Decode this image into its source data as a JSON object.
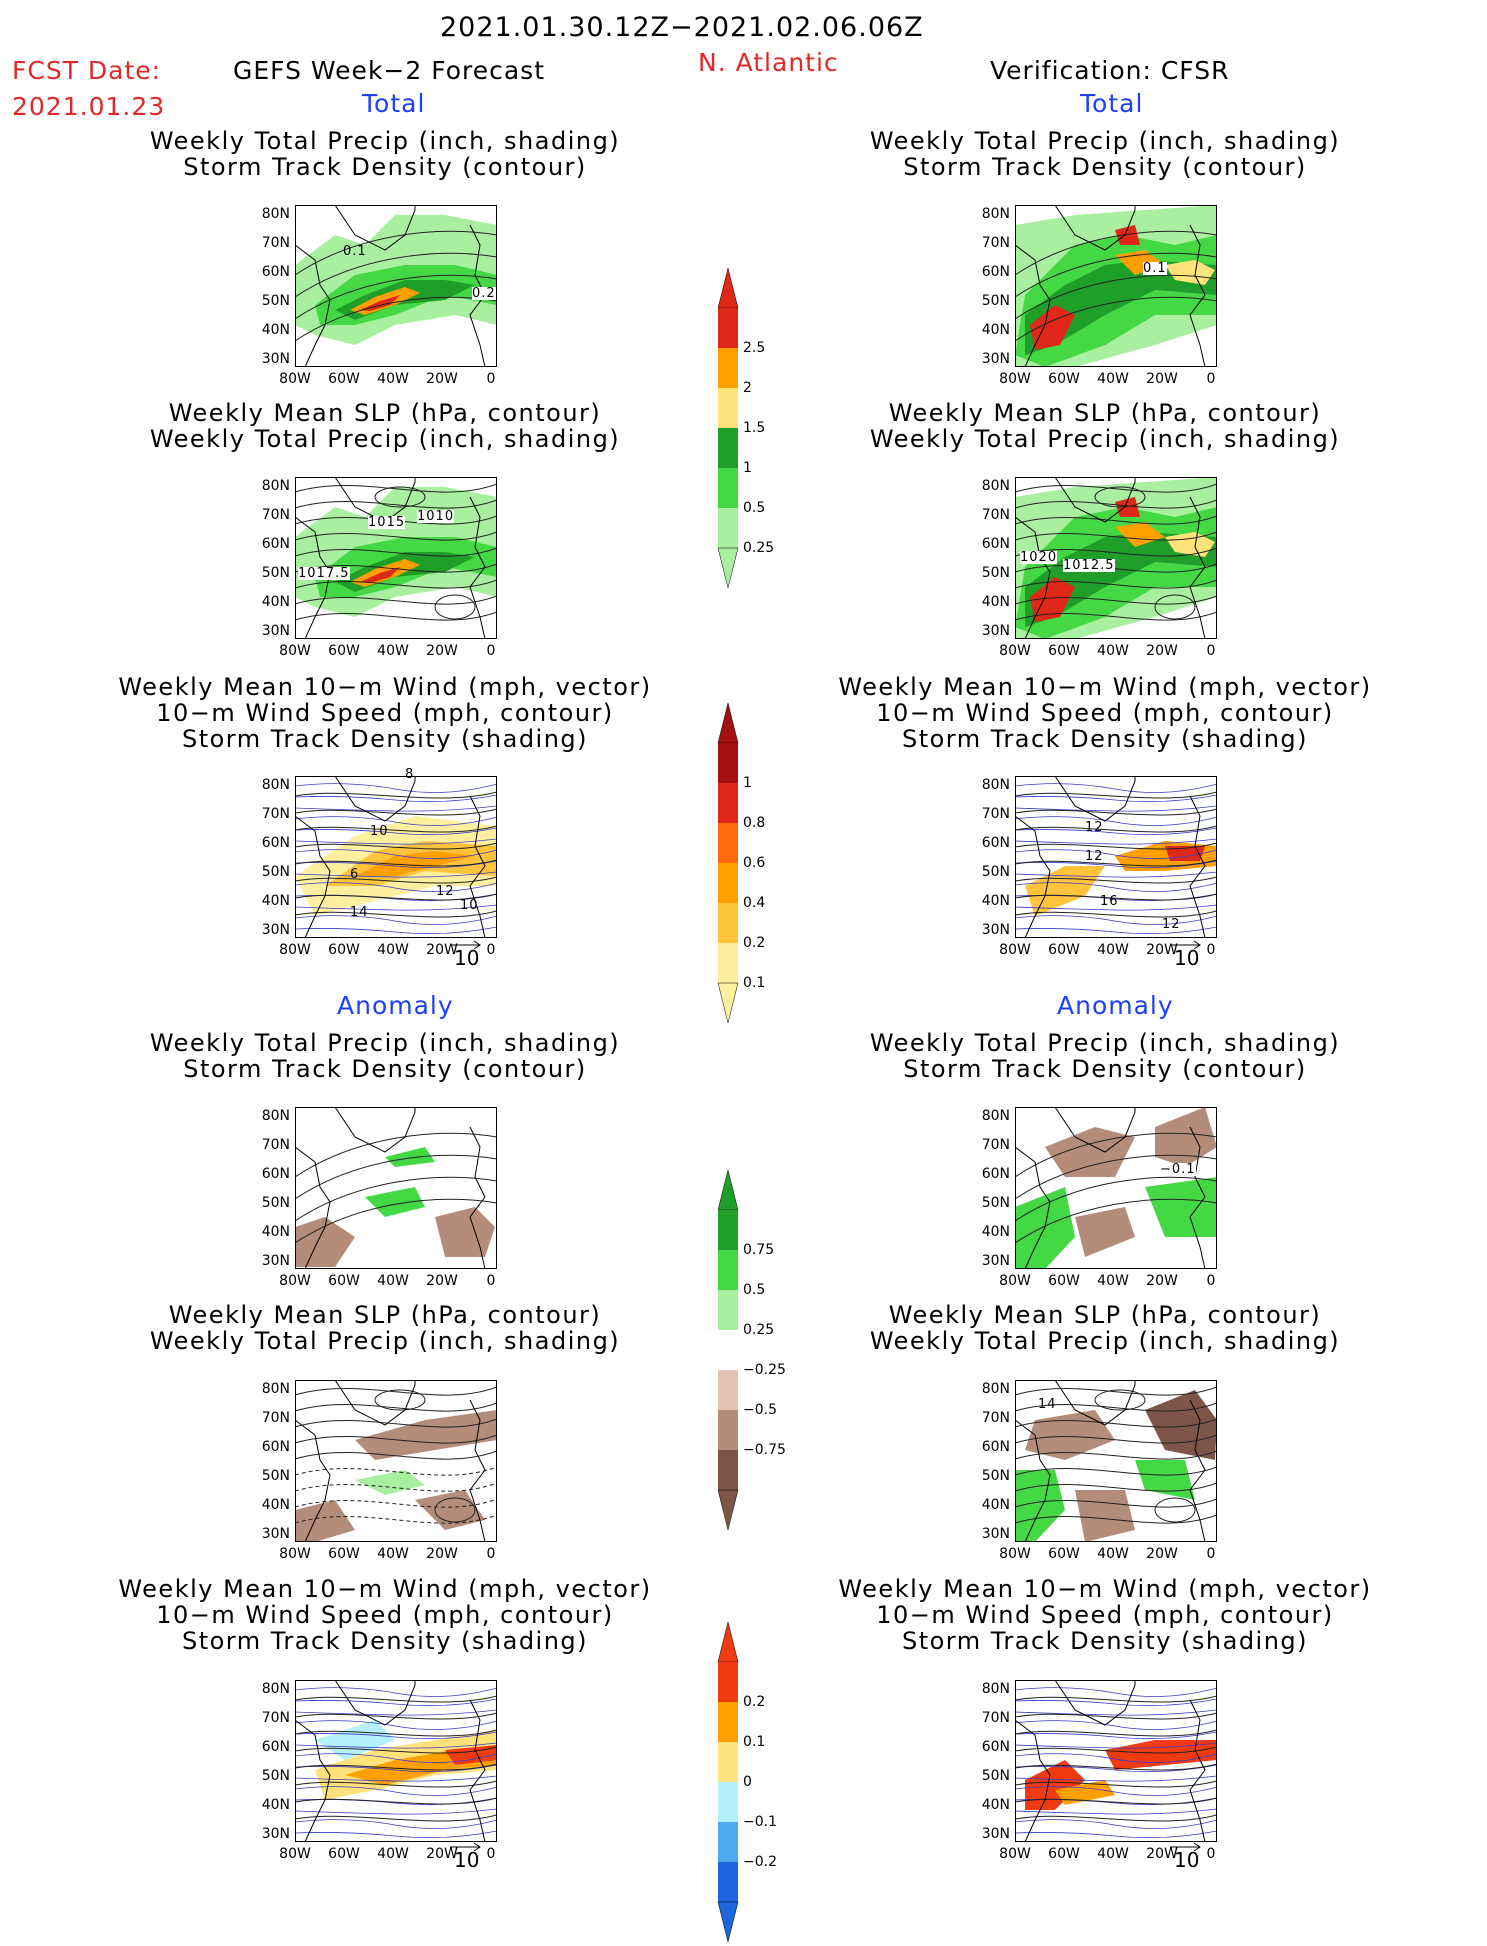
{
  "header": {
    "period": "2021.01.30.12Z−2021.02.06.06Z",
    "fcst_label": "FCST Date:",
    "fcst_date": "2021.01.23",
    "left_title": "GEFS Week−2 Forecast",
    "region": "N. Atlantic",
    "right_title": "Verification: CFSR",
    "total_label": "Total",
    "anomaly_label": "Anomaly"
  },
  "titles": {
    "p1": [
      "Weekly Total Precip (inch, shading)",
      "Storm Track Density (contour)"
    ],
    "p2": [
      "Weekly Mean SLP (hPa, contour)",
      "Weekly Total Precip (inch, shading)"
    ],
    "p3": [
      "Weekly Mean 10−m Wind (mph, vector)",
      "10−m Wind Speed (mph, contour)",
      "Storm Track Density (shading)"
    ]
  },
  "axes": {
    "lat": [
      "80N",
      "70N",
      "60N",
      "50N",
      "40N",
      "30N"
    ],
    "lon": [
      "80W",
      "60W",
      "40W",
      "20W",
      "0"
    ]
  },
  "vector_ref": "10",
  "contour_labels": {
    "gefs_total_track": [
      "0.1",
      "0.2"
    ],
    "cfsr_total_track": [
      "0.1"
    ],
    "gefs_total_slp": [
      "1015",
      "1010",
      "1017.5"
    ],
    "cfsr_total_slp": [
      "1020",
      "1012.5"
    ],
    "gefs_total_wind": [
      "8",
      "10",
      "6",
      "12",
      "14",
      "10"
    ],
    "cfsr_total_wind": [
      "12",
      "12",
      "16",
      "12"
    ],
    "cfsr_anom_track": [
      "−0.1"
    ],
    "cfsr_anom_slp": [
      "14"
    ]
  },
  "colorbars": {
    "total_precip": {
      "labels": [
        "2.5",
        "2",
        "1.5",
        "1",
        "0.5",
        "0.25"
      ],
      "colors": [
        "#e02818",
        "#ff9f00",
        "#ffe37a",
        "#1f9e2a",
        "#45d845",
        "#a8f0a0"
      ]
    },
    "total_density": {
      "labels": [
        "1",
        "0.8",
        "0.6",
        "0.4",
        "0.2",
        "0.1"
      ],
      "colors": [
        "#a31010",
        "#e02818",
        "#ff6a10",
        "#ff9f00",
        "#ffc43c",
        "#fff0a0"
      ]
    },
    "anom_precip": {
      "labels": [
        "0.75",
        "0.5",
        "0.25",
        "−0.25",
        "−0.5",
        "−0.75"
      ],
      "colors": [
        "#1f9e2a",
        "#45d845",
        "#a8f0a0",
        "#ffffff",
        "#e6c2b4",
        "#b48c7a",
        "#7d5647"
      ]
    },
    "anom_density": {
      "labels": [
        "0.2",
        "0.1",
        "0",
        "−0.1",
        "−0.2"
      ],
      "colors": [
        "#f03a10",
        "#ff9f00",
        "#ffe37a",
        "#b4f0fa",
        "#50aaf0",
        "#1e64dc"
      ]
    }
  }
}
